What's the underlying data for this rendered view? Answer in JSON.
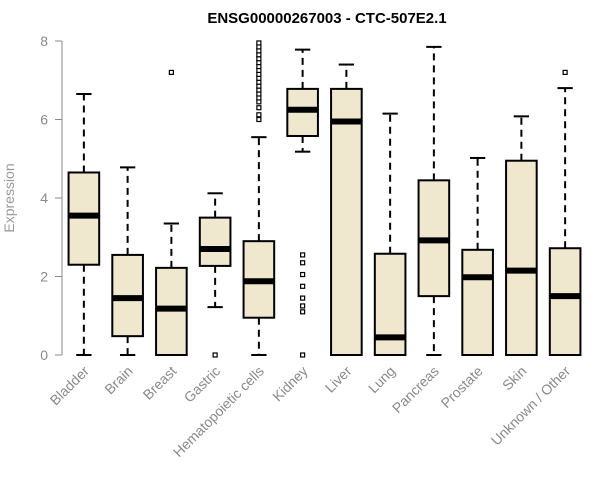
{
  "chart_data": {
    "type": "box",
    "title": "ENSG00000267003 - CTC-507E2.1",
    "xlabel": "",
    "ylabel": "Expression",
    "ylim": [
      0,
      8
    ],
    "yticks": [
      0,
      2,
      4,
      6,
      8
    ],
    "grid": false,
    "box_fill": "#efe8cf",
    "box_stroke": "#000000",
    "categories": [
      "Bladder",
      "Brain",
      "Breast",
      "Gastric",
      "Hematopoietic cells",
      "Kidney",
      "Liver",
      "Lung",
      "Pancreas",
      "Prostate",
      "Skin",
      "Unknown / Other"
    ],
    "boxes": [
      {
        "min": 0,
        "q1": 2.3,
        "median": 3.55,
        "q3": 4.65,
        "max": 6.65,
        "outliers": []
      },
      {
        "min": 0,
        "q1": 0.48,
        "median": 1.45,
        "q3": 2.55,
        "max": 4.78,
        "outliers": []
      },
      {
        "min": 0,
        "q1": 0,
        "median": 1.18,
        "q3": 2.22,
        "max": 3.35,
        "outliers": [
          7.2
        ]
      },
      {
        "min": 1.22,
        "q1": 2.27,
        "median": 2.7,
        "q3": 3.5,
        "max": 4.12,
        "outliers": [
          0
        ]
      },
      {
        "min": 0,
        "q1": 0.95,
        "median": 1.88,
        "q3": 2.9,
        "max": 5.55,
        "outliers": [
          6.0,
          6.12,
          6.3,
          6.45,
          6.55,
          6.65,
          6.75,
          6.85,
          6.95,
          7.05,
          7.15,
          7.25,
          7.35,
          7.45,
          7.55,
          7.65,
          7.75,
          7.85,
          7.95
        ]
      },
      {
        "min": 5.18,
        "q1": 5.58,
        "median": 6.25,
        "q3": 6.78,
        "max": 7.78,
        "outliers": [
          0,
          1.1,
          1.25,
          1.45,
          1.75,
          2.05,
          2.35,
          2.55
        ]
      },
      {
        "min": 0,
        "q1": 0,
        "median": 5.95,
        "q3": 6.78,
        "max": 7.4,
        "outliers": []
      },
      {
        "min": 0,
        "q1": 0,
        "median": 0.45,
        "q3": 2.58,
        "max": 6.15,
        "outliers": []
      },
      {
        "min": 0,
        "q1": 1.5,
        "median": 2.92,
        "q3": 4.45,
        "max": 7.85,
        "outliers": []
      },
      {
        "min": 0,
        "q1": 0,
        "median": 1.98,
        "q3": 2.68,
        "max": 5.02,
        "outliers": []
      },
      {
        "min": 0,
        "q1": 0,
        "median": 2.15,
        "q3": 4.95,
        "max": 6.08,
        "outliers": []
      },
      {
        "min": 0,
        "q1": 0,
        "median": 1.5,
        "q3": 2.72,
        "max": 6.8,
        "outliers": [
          7.2
        ]
      }
    ]
  }
}
